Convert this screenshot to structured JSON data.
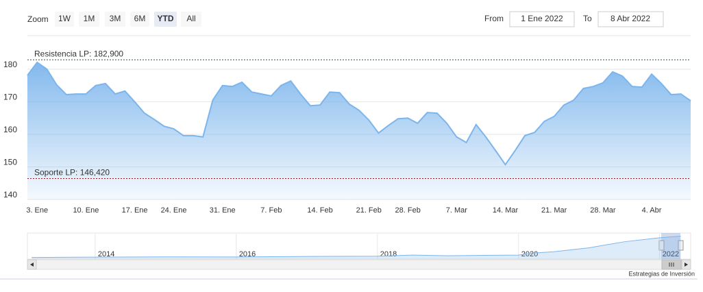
{
  "chart_data": {
    "type": "area",
    "categories": [
      null,
      "3. Ene",
      null,
      null,
      null,
      null,
      "10. Ene",
      null,
      null,
      null,
      null,
      "17. Ene",
      null,
      null,
      null,
      "24. Ene",
      null,
      null,
      null,
      null,
      "31. Ene",
      null,
      null,
      null,
      null,
      "7. Feb",
      null,
      null,
      null,
      null,
      "14. Feb",
      null,
      null,
      null,
      null,
      "21. Feb",
      null,
      null,
      null,
      "28. Feb",
      null,
      null,
      null,
      null,
      "7. Mar",
      null,
      null,
      null,
      null,
      "14. Mar",
      null,
      null,
      null,
      null,
      "21. Mar",
      null,
      null,
      null,
      null,
      "28. Mar",
      null,
      null,
      null,
      null,
      "4. Abr",
      null,
      null,
      null,
      null
    ],
    "series": [
      {
        "color": "#7cb5ec",
        "values": [
          178.1,
          182.1,
          180,
          175.2,
          172.2,
          172.4,
          172.4,
          175,
          175.6,
          172.4,
          173.3,
          170,
          166.5,
          164.6,
          162.5,
          161.7,
          159.6,
          159.6,
          159.2,
          170.5,
          175,
          174.7,
          176,
          173,
          172.4,
          171.8,
          175,
          176.4,
          172.4,
          168.8,
          169,
          173,
          172.8,
          169.3,
          167.4,
          164.4,
          160.4,
          162.7,
          164.8,
          165,
          163.4,
          166.7,
          166.5,
          163.4,
          159.2,
          157.5,
          163,
          159.2,
          155,
          150.7,
          155,
          159.6,
          160.6,
          164,
          165.5,
          169,
          170.5,
          174.1,
          174.7,
          175.8,
          179.2,
          177.9,
          174.7,
          174.5,
          178.5,
          175.6,
          172.2,
          172.4,
          170.3
        ]
      }
    ],
    "ylim": [
      140,
      190
    ],
    "yticks": [
      140,
      150,
      160,
      170,
      180
    ],
    "grid": true,
    "plot_lines": [
      {
        "value": 182.9,
        "label": "Resistencia LP: 182,900",
        "color": "#1f5f2a"
      },
      {
        "value": 146.42,
        "label": "Soporte LP: 146,420",
        "color": "#8b1a1a"
      }
    ]
  },
  "range_selector": {
    "zoom_label": "Zoom",
    "buttons": [
      "1W",
      "1M",
      "3M",
      "6M",
      "YTD",
      "All"
    ],
    "selected": 4,
    "from_label": "From",
    "from_value": "1 Ene 2022",
    "to_label": "To",
    "to_value": "8 Abr 2022"
  },
  "navigator": {
    "x": [
      2013.1,
      2014,
      2015,
      2016,
      2017,
      2018,
      2018.5,
      2019,
      2019.5,
      2020,
      2020.2,
      2020.5,
      2021,
      2021.5,
      2022,
      2022.3
    ],
    "values": [
      12,
      15,
      17,
      16,
      20,
      22,
      30,
      25,
      28,
      30,
      45,
      55,
      85,
      130,
      160,
      172
    ],
    "xlim": [
      2013.04,
      2022.44
    ],
    "ylim": [
      0,
      190
    ],
    "xticks": [
      2014,
      2016,
      2018,
      2020,
      2022
    ]
  },
  "credits": "Estrategias de Inversión"
}
